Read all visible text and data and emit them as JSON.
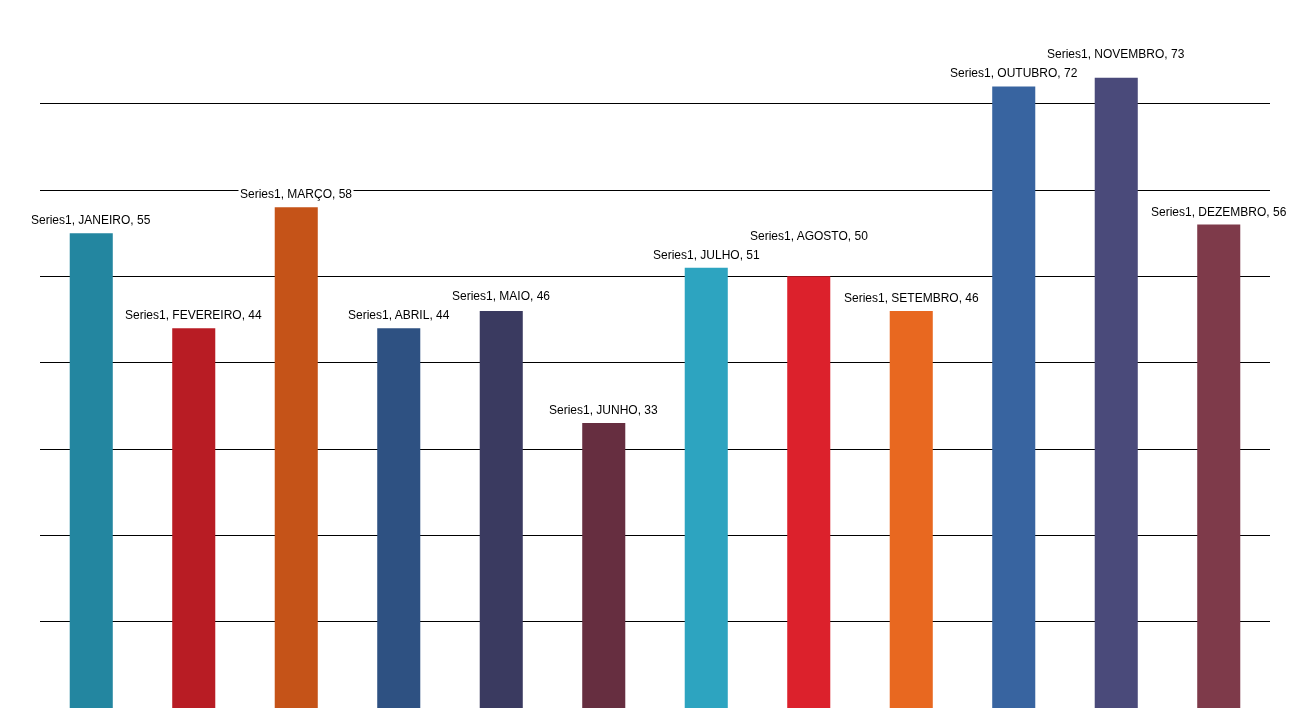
{
  "chart_data": {
    "type": "bar",
    "categories": [
      null,
      null,
      null,
      null,
      null,
      null,
      null,
      null,
      null,
      null,
      null,
      null
    ],
    "values": [
      55,
      44,
      58,
      44,
      46,
      33,
      51,
      50,
      46,
      72,
      73,
      56
    ],
    "colors": [
      "#2386a0",
      "#b81c24",
      "#c55318",
      "#2e5182",
      "#3a3a60",
      "#662e40",
      "#2da4c0",
      "#dc212c",
      "#e86820",
      "#3864a0",
      "#4a4a7a",
      "#7e3a4a"
    ],
    "value_labels": [
      "Series1, JANEIRO, 55",
      "Series1, FEVEREIRO, 44",
      "Series1, MARÇO, 58",
      "Series1, ABRIL, 44",
      "Series1, MAIO, 46",
      "Series1, JUNHO, 33",
      "Series1, JULHO, 51",
      "Series1, AGOSTO, 50",
      "Series1, SETEMBRO, 46",
      "Series1, OUTUBRO, 72",
      "Series1, NOVEMBRO, 73",
      "Series1, DEZEMBRO, 56"
    ],
    "grid": "y",
    "tick_labels": false
  }
}
